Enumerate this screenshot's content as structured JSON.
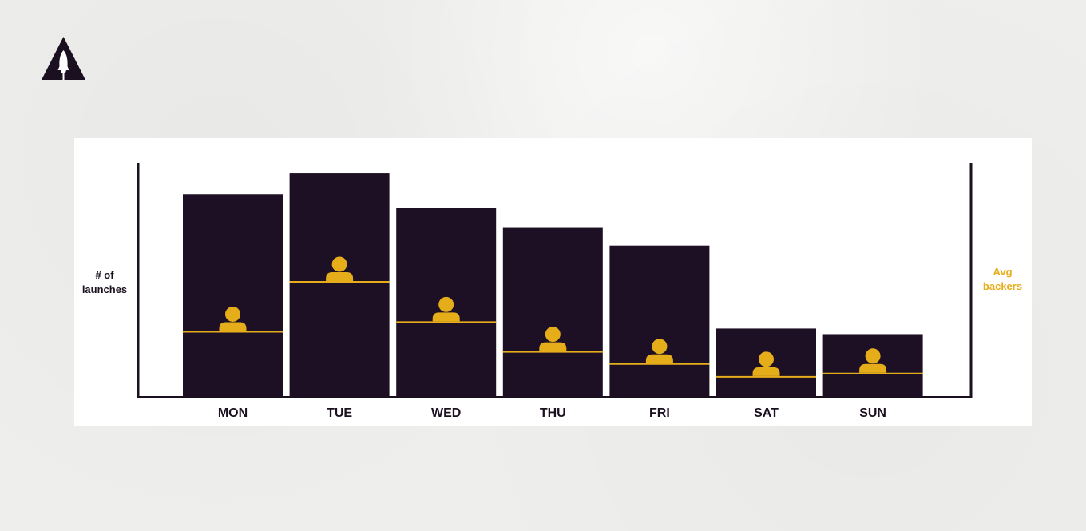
{
  "brand": {
    "logo_icon": "rocket-triangle-icon"
  },
  "chart_data": {
    "type": "bar",
    "categories": [
      "MON",
      "TUE",
      "WED",
      "THU",
      "FRI",
      "SAT",
      "SUN"
    ],
    "series": [
      {
        "values": [
          252,
          278,
          235,
          211,
          188,
          85,
          78
        ],
        "color": "#1d1025"
      },
      {
        "values": [
          81,
          143,
          93,
          56,
          41,
          25,
          29
        ],
        "color": "#e6ad1b",
        "marker": "person-icon"
      }
    ],
    "ylabel": "# of launches",
    "ylabel_right": "Avg backers",
    "ylim": [
      0,
      290
    ],
    "grid": false,
    "legend": "none"
  }
}
